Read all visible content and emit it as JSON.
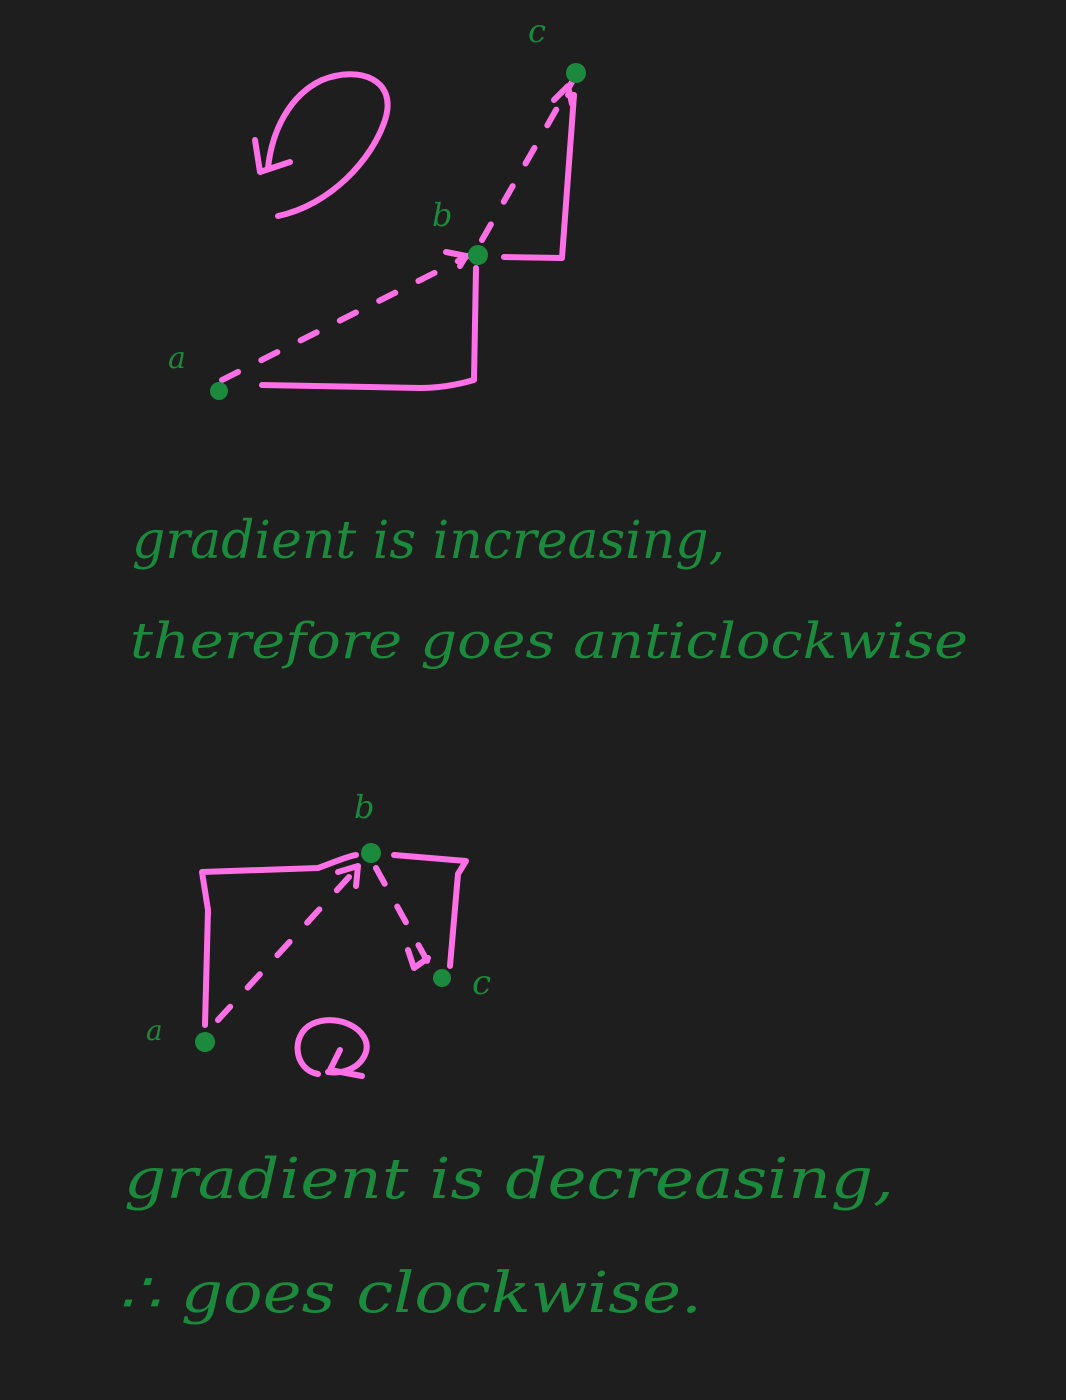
{
  "colors": {
    "background": "#1f1e1e",
    "ink_green": "#1b8a3c",
    "ink_pink": "#ff6fe6"
  },
  "diagram1": {
    "point_labels": {
      "a": "a",
      "b": "b",
      "c": "c"
    },
    "rotation_icon": "anticlockwise-arrow-icon",
    "note_line1": "gradient is increasing,",
    "note_line2": "therefore goes anticlockwise"
  },
  "diagram2": {
    "point_labels": {
      "a": "a",
      "b": "b",
      "c": "c"
    },
    "rotation_icon": "clockwise-arrow-icon",
    "note_line1": "gradient is decreasing,",
    "note_line2": "∴ goes clockwise."
  }
}
